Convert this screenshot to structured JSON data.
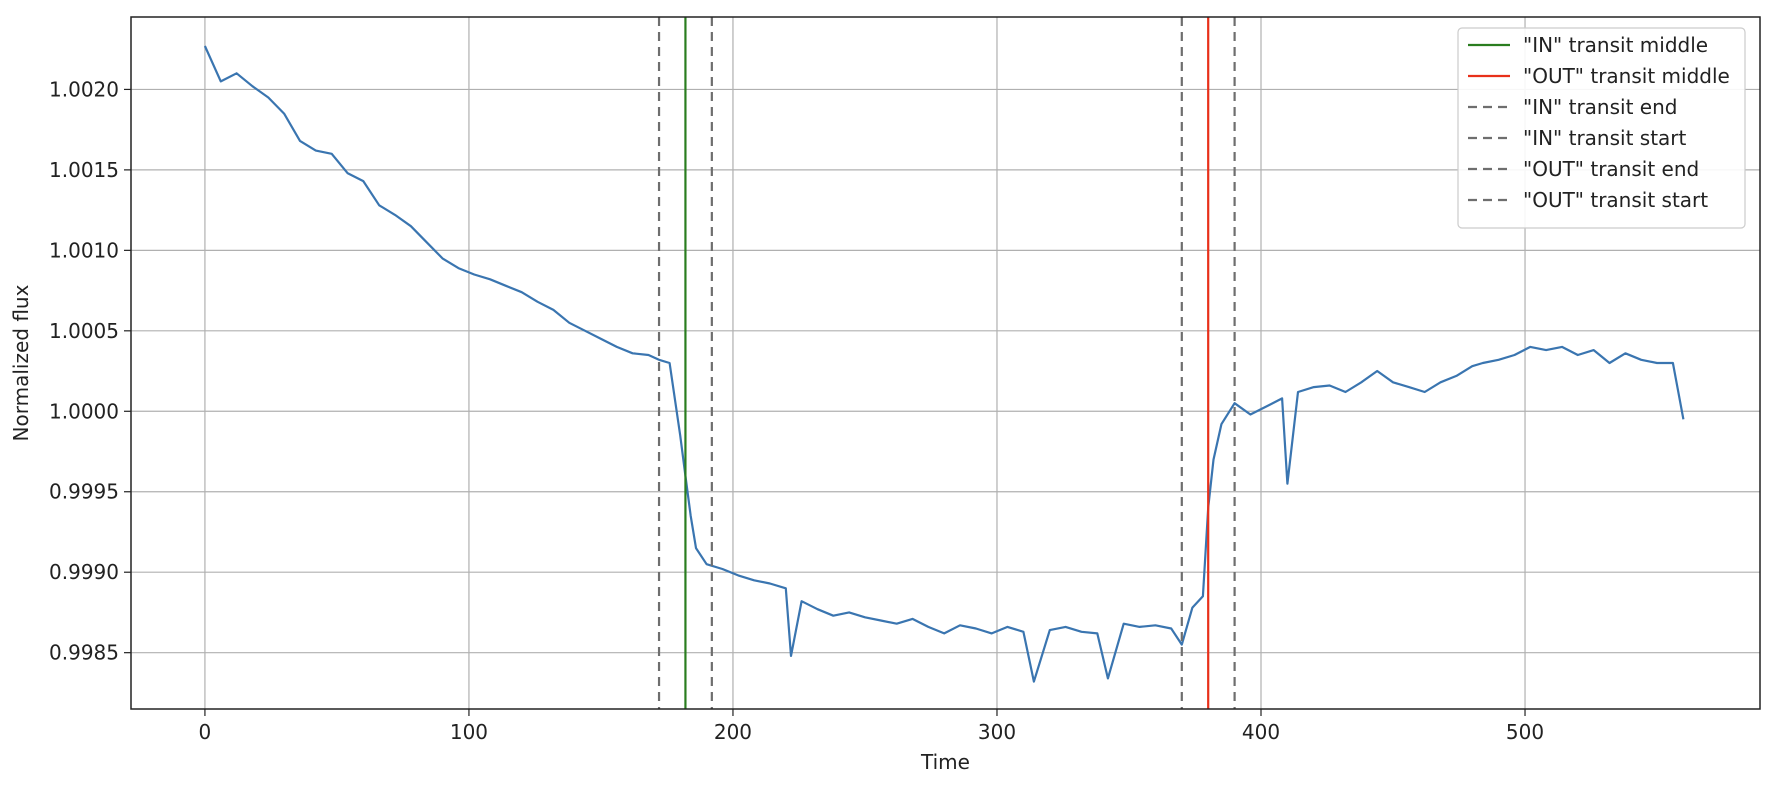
{
  "chart_data": {
    "type": "line",
    "xlabel": "Time",
    "ylabel": "Normalized flux",
    "xlim": [
      -28,
      589
    ],
    "ylim": [
      0.99815,
      1.00245
    ],
    "x_ticks": [
      0,
      100,
      200,
      300,
      400,
      500
    ],
    "x_tick_labels": [
      "0",
      "100",
      "200",
      "300",
      "400",
      "500"
    ],
    "y_ticks": [
      0.9985,
      0.999,
      0.9995,
      1.0,
      1.0005,
      1.001,
      1.0015,
      1.002
    ],
    "y_tick_labels": [
      "0.9985",
      "0.9990",
      "0.9995",
      "1.0000",
      "1.0005",
      "1.0010",
      "1.0015",
      "1.0020"
    ],
    "grid": true,
    "legend_position": "top-right",
    "series": [
      {
        "color": "#3a75b0",
        "x": [
          0,
          6,
          12,
          18,
          24,
          30,
          36,
          42,
          48,
          54,
          60,
          66,
          72,
          78,
          84,
          90,
          96,
          102,
          108,
          114,
          120,
          126,
          132,
          138,
          144,
          150,
          156,
          162,
          168,
          172,
          176,
          180,
          182,
          184,
          186,
          190,
          196,
          202,
          208,
          214,
          220,
          222,
          226,
          232,
          238,
          244,
          250,
          256,
          262,
          268,
          274,
          280,
          286,
          292,
          298,
          304,
          310,
          314,
          320,
          326,
          332,
          338,
          342,
          348,
          354,
          360,
          366,
          370,
          374,
          378,
          380,
          382,
          385,
          390,
          396,
          402,
          408,
          410,
          414,
          420,
          426,
          432,
          438,
          444,
          450,
          456,
          462,
          468,
          474,
          480,
          484,
          490,
          496,
          502,
          508,
          514,
          520,
          526,
          532,
          538,
          544,
          550,
          556,
          560
        ],
        "y": [
          1.00227,
          1.00205,
          1.0021,
          1.00202,
          1.00195,
          1.00185,
          1.00168,
          1.00162,
          1.0016,
          1.00148,
          1.00143,
          1.00128,
          1.00122,
          1.00115,
          1.00105,
          1.00095,
          1.00089,
          1.00085,
          1.00082,
          1.00078,
          1.00074,
          1.00068,
          1.00063,
          1.00055,
          1.0005,
          1.00045,
          1.0004,
          1.00036,
          1.00035,
          1.00032,
          1.0003,
          0.99985,
          0.9996,
          0.99935,
          0.99915,
          0.99905,
          0.99902,
          0.99898,
          0.99895,
          0.99893,
          0.9989,
          0.99848,
          0.99882,
          0.99877,
          0.99873,
          0.99875,
          0.99872,
          0.9987,
          0.99868,
          0.99871,
          0.99866,
          0.99862,
          0.99867,
          0.99865,
          0.99862,
          0.99866,
          0.99863,
          0.99832,
          0.99864,
          0.99866,
          0.99863,
          0.99862,
          0.99834,
          0.99868,
          0.99866,
          0.99867,
          0.99865,
          0.99855,
          0.99878,
          0.99885,
          0.9994,
          0.9997,
          0.99992,
          1.00005,
          0.99998,
          1.00003,
          1.00008,
          0.99955,
          1.00012,
          1.00015,
          1.00016,
          1.00012,
          1.00018,
          1.00025,
          1.00018,
          1.00015,
          1.00012,
          1.00018,
          1.00022,
          1.00028,
          1.0003,
          1.00032,
          1.00035,
          1.0004,
          1.00038,
          1.0004,
          1.00035,
          1.00038,
          1.0003,
          1.00036,
          1.00032,
          1.0003,
          1.0003,
          0.99995
        ]
      },
      {
        "name": "\"IN\" transit middle",
        "color": "#2a7d1f",
        "style": "solid",
        "x": 182
      },
      {
        "name": "\"OUT\" transit middle",
        "color": "#e8301a",
        "style": "solid",
        "x": 380
      },
      {
        "name": "\"IN\" transit end",
        "color": "#6e6e6e",
        "style": "dashed",
        "x": 172
      },
      {
        "name": "\"IN\" transit start",
        "color": "#6e6e6e",
        "style": "dashed",
        "x": 192
      },
      {
        "name": "\"OUT\" transit end",
        "color": "#6e6e6e",
        "style": "dashed",
        "x": 370
      },
      {
        "name": "\"OUT\" transit start",
        "color": "#6e6e6e",
        "style": "dashed",
        "x": 390
      }
    ]
  }
}
